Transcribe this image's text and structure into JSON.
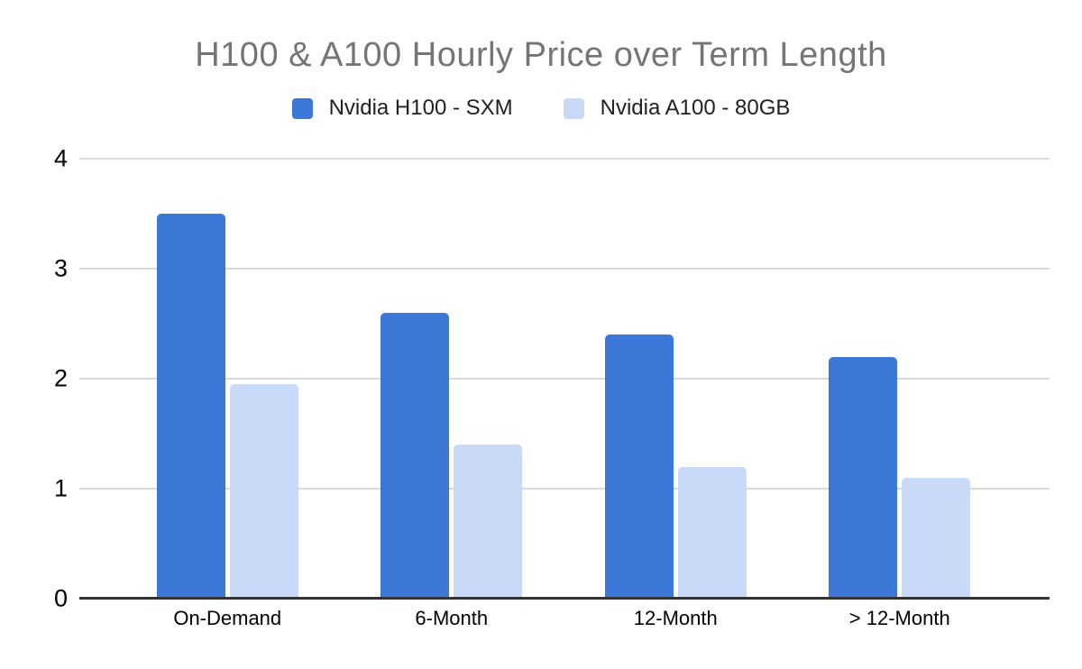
{
  "chart_data": {
    "type": "bar",
    "title": "H100 & A100 Hourly Price over Term Length",
    "categories": [
      "On-Demand",
      "6-Month",
      "12-Month",
      "> 12-Month"
    ],
    "series": [
      {
        "name": "Nvidia H100 - SXM",
        "color": "#3c78d8",
        "values": [
          3.5,
          2.6,
          2.4,
          2.2
        ]
      },
      {
        "name": "Nvidia A100 - 80GB",
        "color": "#c9daf8",
        "values": [
          1.95,
          1.4,
          1.2,
          1.1
        ]
      }
    ],
    "xlabel": "",
    "ylabel": "",
    "ylim": [
      0,
      4
    ],
    "yticks": [
      0,
      1,
      2,
      3,
      4
    ],
    "grid": true,
    "legend_position": "top",
    "colors": {
      "title_text": "#757575",
      "legend_text": "#212121",
      "tick_label": "#000000",
      "gridline": "#d9d9d9",
      "axis_line": "#333333",
      "background": "#ffffff"
    }
  }
}
